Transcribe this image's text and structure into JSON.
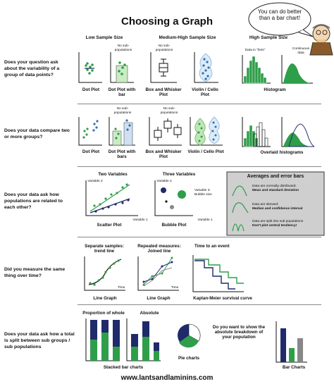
{
  "title": "Choosing a Graph",
  "bubble_text": "You can do better than a bar chart!",
  "columns": {
    "low": "Low Sample Size",
    "medium": "Medium-High Sample Size",
    "high": "High Sample Size"
  },
  "questions": {
    "q1": "Does your question ask about the variability of a group of data points?",
    "q2": "Does your data compare two or more groups?",
    "q3": "Does your data ask how populations are related to each other?",
    "q4": "Did you measure the same thing over time?",
    "q5": "Does your data ask how a total is split between sub groups / sub populations"
  },
  "row1": {
    "dot_plot": "Dot Plot",
    "dot_plot_bar": "Dot Plot with bar",
    "no_sub_a": "No sub-populations",
    "no_sub_b": "No sub-populations",
    "box": "Box and Whisker Plot",
    "violin": "Violin / Cello Plot",
    "bins": "Data in \"bins\"",
    "continuous": "Continuous data",
    "histogram": "Histogram"
  },
  "row2": {
    "dot_plot": "Dot Plot",
    "dot_plot_bars": "Dot Plot with bars",
    "no_sub_a": "No sub-populations",
    "no_sub_b": "No sub-populations",
    "box": "Box and Whisker Plot",
    "violin": "Violin / Cello Plot",
    "overlaid": "Overlaid histograms"
  },
  "row3": {
    "two_vars": "Two Variables",
    "three_vars": "Three Variables",
    "var2a": "Variable 2",
    "var1a": "Variable 1",
    "var2b": "Variable 2",
    "var1b": "Variable 1",
    "var3": "Variable 3: Bubble size",
    "scatter": "Scatter Plot",
    "bubble": "Bubble Plot",
    "avg_title": "Averages and error bars",
    "avg_items": [
      {
        "l1": "Data are normally distributed:",
        "l2": "Mean and standard deviation"
      },
      {
        "l1": "Data are skewed:",
        "l2": "Median and confidence interval"
      },
      {
        "l1": "Data are split into sub populations",
        "l2": "Don't plot central tendency!"
      }
    ]
  },
  "row4": {
    "separate": "Separate samples: trend line",
    "repeated": "Repeated measures: Joined line",
    "time_event": "Time to an event",
    "time_a": "Time",
    "time_b": "Time",
    "line_a": "Line Graph",
    "line_b": "Line Graph",
    "km": "Kaplan-Meier survival curve"
  },
  "row5": {
    "proportion": "Proportion of whole",
    "absolute": "Absolute",
    "stacked": "Stacked bar charts",
    "pie": "Pie charts",
    "absolute_q": "Do you want to show the absolute breakdown of your population",
    "bar": "Bar Charts"
  },
  "footer": "www.lantsandlaminins.com",
  "colors": {
    "green": "#2e9e4a",
    "navy": "#1f2a6b",
    "blue": "#2f6fb5",
    "lightgreen": "#a9dd9f"
  }
}
